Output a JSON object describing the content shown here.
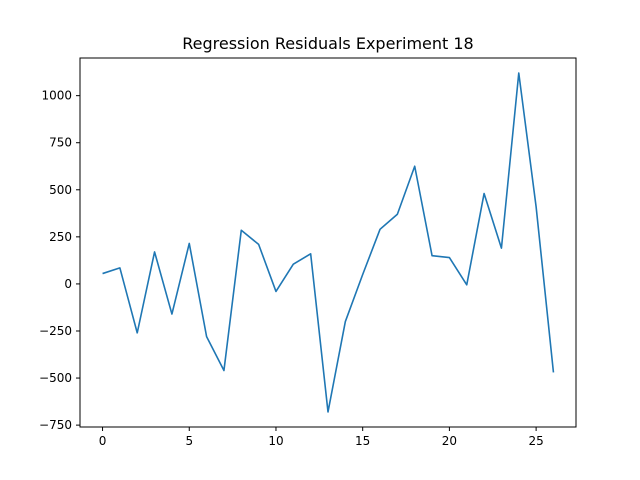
{
  "chart_data": {
    "type": "line",
    "title": "Regression Residuals Experiment 18",
    "xlabel": "",
    "ylabel": "",
    "xlim": [
      -1.3,
      27.3
    ],
    "ylim": [
      -760,
      1200
    ],
    "grid": false,
    "x_ticks": [
      0,
      5,
      10,
      15,
      20,
      25
    ],
    "y_ticks": [
      -750,
      -500,
      -250,
      0,
      250,
      500,
      750,
      1000
    ],
    "series": [
      {
        "color": "#1f77b4",
        "x": [
          0,
          1,
          2,
          3,
          4,
          5,
          6,
          7,
          8,
          9,
          10,
          11,
          12,
          13,
          14,
          15,
          16,
          17,
          18,
          19,
          20,
          21,
          22,
          23,
          24,
          25,
          26
        ],
        "y": [
          55,
          85,
          -260,
          170,
          -160,
          215,
          -280,
          -460,
          285,
          210,
          -40,
          105,
          160,
          -680,
          -200,
          50,
          290,
          370,
          625,
          150,
          140,
          -5,
          480,
          190,
          1120,
          410,
          -470
        ]
      }
    ]
  }
}
